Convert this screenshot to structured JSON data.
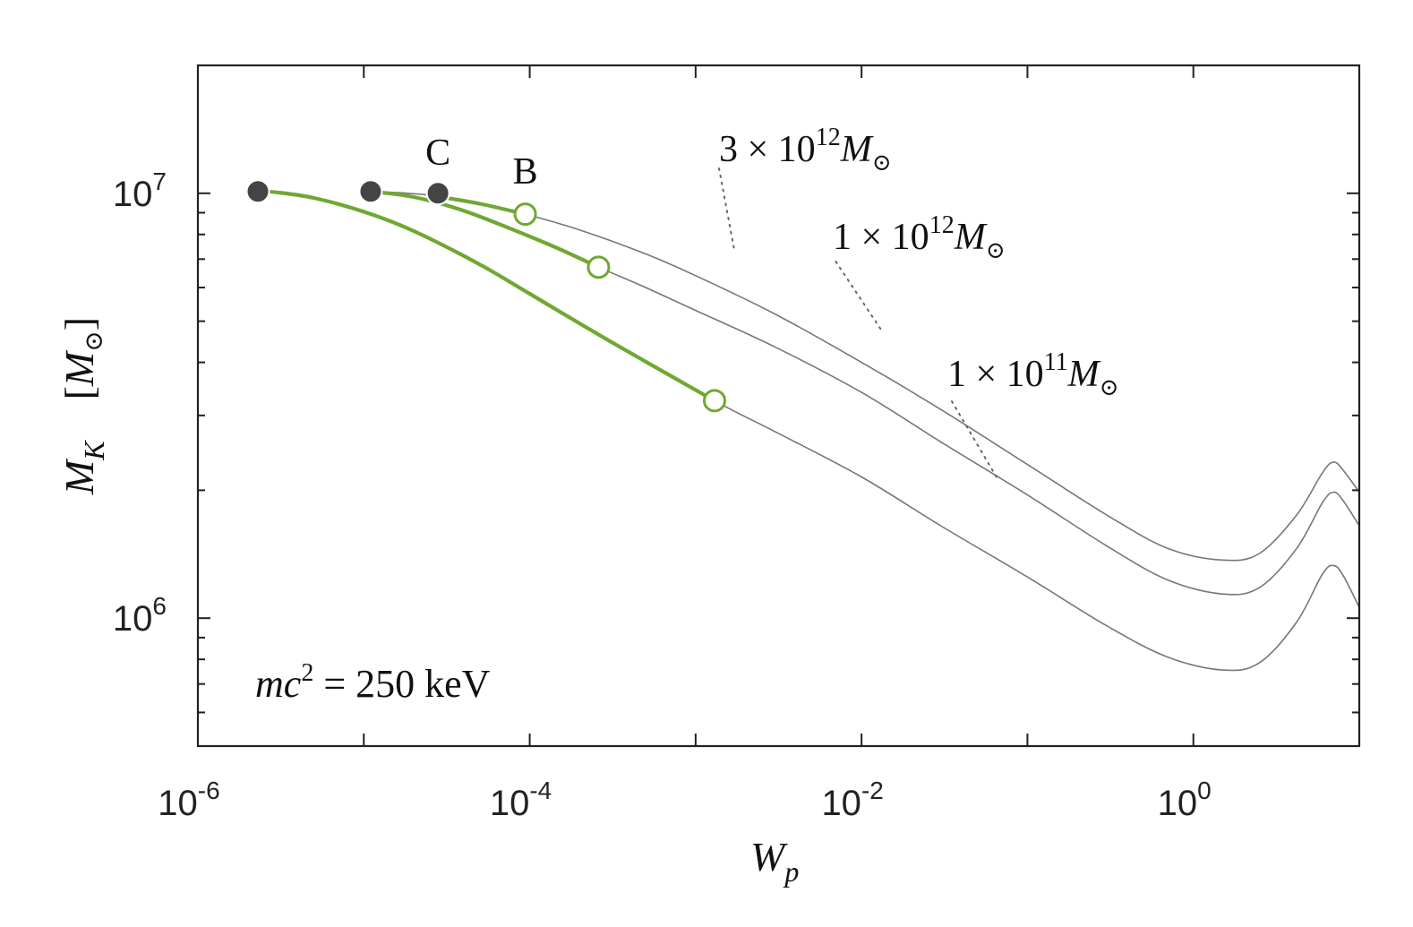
{
  "chart_data": {
    "type": "line",
    "xscale": "log",
    "yscale": "log",
    "xlim": [
      1e-06,
      10
    ],
    "ylim": [
      500000,
      20000000
    ],
    "xlabel": {
      "main": "W",
      "sub": "p"
    },
    "ylabel": {
      "main": "M",
      "sub": "K",
      "unit_open": "[",
      "unit_main": "M",
      "unit_sub": "⊙",
      "unit_close": "]"
    },
    "xticks": [
      {
        "value": 1e-06,
        "base": "10",
        "exp": "-6"
      },
      {
        "value": 0.0001,
        "base": "10",
        "exp": "-4"
      },
      {
        "value": 0.01,
        "base": "10",
        "exp": "-2"
      },
      {
        "value": 1,
        "base": "10",
        "exp": "0"
      }
    ],
    "yticks": [
      {
        "value": 1000000,
        "base": "10",
        "exp": "6"
      },
      {
        "value": 10000000,
        "base": "10",
        "exp": "7"
      }
    ],
    "series": [
      {
        "label_coef": "3 × 10",
        "label_exp": "12",
        "label_main": "M",
        "label_sub": "⊙",
        "annotation_at": {
          "x": 0.0017,
          "y": 7450000
        },
        "points": [
          [
            1.2e-05,
            10100000
          ],
          [
            2.5e-05,
            9900000
          ],
          [
            5e-05,
            9450000
          ],
          [
            9.4e-05,
            8930000
          ],
          [
            0.0002,
            8200000
          ],
          [
            0.0005,
            7200000
          ],
          [
            0.001,
            6400000
          ],
          [
            0.003,
            5200000
          ],
          [
            0.01,
            4000000
          ],
          [
            0.03,
            3100000
          ],
          [
            0.1,
            2300000
          ],
          [
            0.3,
            1750000
          ],
          [
            0.7,
            1460000
          ],
          [
            1.5,
            1370000
          ],
          [
            2.5,
            1420000
          ],
          [
            4.2,
            1750000
          ],
          [
            6,
            2200000
          ],
          [
            7,
            2330000
          ],
          [
            8,
            2230000
          ],
          [
            10,
            1980000
          ]
        ],
        "green_range": [
          2.8e-05,
          9.4e-05
        ],
        "filled_marker": {
          "x": 2.8e-05,
          "y": 10000000,
          "label": "C"
        },
        "open_marker": {
          "x": 9.4e-05,
          "y": 8930000,
          "label": "B"
        }
      },
      {
        "label_coef": "1 × 10",
        "label_exp": "12",
        "label_main": "M",
        "label_sub": "⊙",
        "annotation_at": {
          "x": 0.013,
          "y": 4800000
        },
        "points": [
          [
            1.1e-05,
            10100000
          ],
          [
            2e-05,
            9800000
          ],
          [
            4e-05,
            9100000
          ],
          [
            8e-05,
            8200000
          ],
          [
            0.00015,
            7400000
          ],
          [
            0.00026,
            6700000
          ],
          [
            0.0005,
            6000000
          ],
          [
            0.001,
            5300000
          ],
          [
            0.003,
            4350000
          ],
          [
            0.01,
            3400000
          ],
          [
            0.03,
            2600000
          ],
          [
            0.1,
            1950000
          ],
          [
            0.3,
            1480000
          ],
          [
            0.7,
            1230000
          ],
          [
            1.5,
            1140000
          ],
          [
            2.5,
            1180000
          ],
          [
            4.2,
            1460000
          ],
          [
            6,
            1870000
          ],
          [
            7,
            1980000
          ],
          [
            8,
            1890000
          ],
          [
            10,
            1650000
          ]
        ],
        "green_range": [
          1.1e-05,
          0.00026
        ],
        "filled_marker": {
          "x": 1.1e-05,
          "y": 10100000,
          "label": ""
        },
        "open_marker": {
          "x": 0.00026,
          "y": 6700000,
          "label": ""
        }
      },
      {
        "label_coef": "1 × 10",
        "label_exp": "11",
        "label_main": "M",
        "label_sub": "⊙",
        "annotation_at": {
          "x": 0.065,
          "y": 2150000
        },
        "points": [
          [
            2.3e-06,
            10100000
          ],
          [
            3e-06,
            10050000
          ],
          [
            5e-06,
            9750000
          ],
          [
            1e-05,
            9050000
          ],
          [
            2e-05,
            8150000
          ],
          [
            5e-05,
            6800000
          ],
          [
            0.0001,
            5800000
          ],
          [
            0.0003,
            4500000
          ],
          [
            0.0013,
            3250000
          ],
          [
            0.003,
            2750000
          ],
          [
            0.01,
            2150000
          ],
          [
            0.03,
            1650000
          ],
          [
            0.1,
            1250000
          ],
          [
            0.3,
            960000
          ],
          [
            0.7,
            810000
          ],
          [
            1.5,
            755000
          ],
          [
            2.5,
            785000
          ],
          [
            4.2,
            980000
          ],
          [
            6,
            1270000
          ],
          [
            7,
            1330000
          ],
          [
            8,
            1260000
          ],
          [
            10,
            1060000
          ]
        ],
        "green_range": [
          2.3e-06,
          0.0013
        ],
        "filled_marker": {
          "x": 2.3e-06,
          "y": 10100000,
          "label": ""
        },
        "open_marker": {
          "x": 0.0013,
          "y": 3250000,
          "label": ""
        }
      }
    ],
    "annotation": {
      "lhs": "mc",
      "lhs_exp": "2",
      "rest": " = 250 keV"
    },
    "colors": {
      "gray_line": "#777777",
      "green_line": "#6fa832",
      "filled_marker": "#444444",
      "axes": "#222222"
    },
    "grid": false,
    "legend": "none"
  }
}
